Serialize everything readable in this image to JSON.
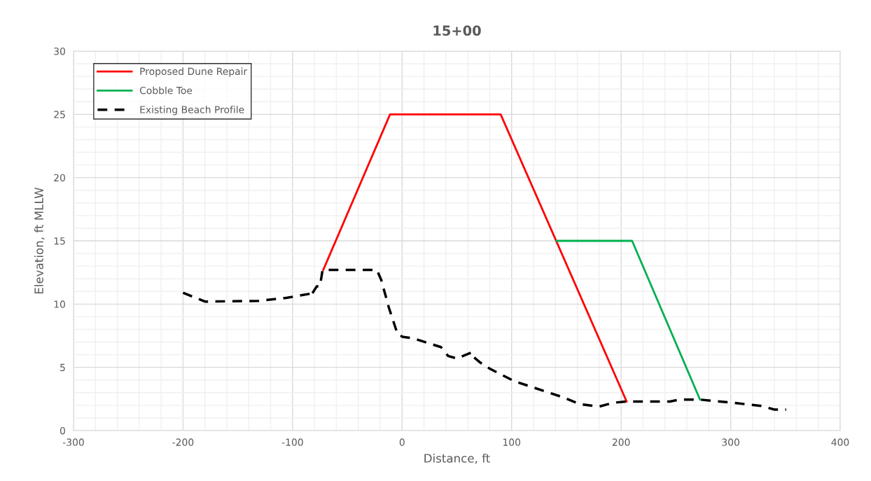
{
  "chart_data": {
    "type": "line",
    "title": "15+00",
    "xlabel": "Distance, ft",
    "ylabel": "Elevation, ft MLLW",
    "xlim": [
      -300,
      400
    ],
    "xticks": [
      -300,
      -200,
      -100,
      0,
      100,
      200,
      300,
      400
    ],
    "ylim": [
      0,
      30
    ],
    "yticks": [
      0,
      5,
      10,
      15,
      20,
      25,
      30
    ],
    "grid": true,
    "legend": "top left",
    "marker": "none",
    "series": [
      {
        "name": "Proposed Dune Repair",
        "color": "#ff0000",
        "line_style": "solid",
        "x": [
          -72,
          -11,
          90,
          205
        ],
        "values": [
          12.7,
          25,
          25,
          2.3
        ]
      },
      {
        "name": "Cobble Toe",
        "color": "#00b050",
        "line_style": "solid",
        "x": [
          141,
          210,
          272
        ],
        "values": [
          15,
          15,
          2.45
        ]
      },
      {
        "name": "Existing Beach Profile",
        "color": "#000000",
        "line_style": "dashed",
        "x": [
          -200,
          -180,
          -131,
          -105,
          -82,
          -83,
          -78,
          -75,
          -72.6,
          -23,
          -19,
          -12,
          -4,
          1,
          10,
          35.5,
          42,
          50,
          64,
          65.5,
          71,
          80,
          102.6,
          146,
          162,
          180,
          193,
          205,
          244.5,
          253,
          272,
          302,
          327.7,
          340,
          350.7
        ],
        "values": [
          10.9,
          10.2,
          10.25,
          10.5,
          10.85,
          10.7,
          11.4,
          11.4,
          12.7,
          12.7,
          11.9,
          9.7,
          7.6,
          7.4,
          7.3,
          6.6,
          5.9,
          5.7,
          6.2,
          5.8,
          5.4,
          4.9,
          3.9,
          2.66,
          2.1,
          1.9,
          2.2,
          2.3,
          2.3,
          2.45,
          2.45,
          2.2,
          1.95,
          1.66,
          1.66
        ]
      }
    ]
  }
}
